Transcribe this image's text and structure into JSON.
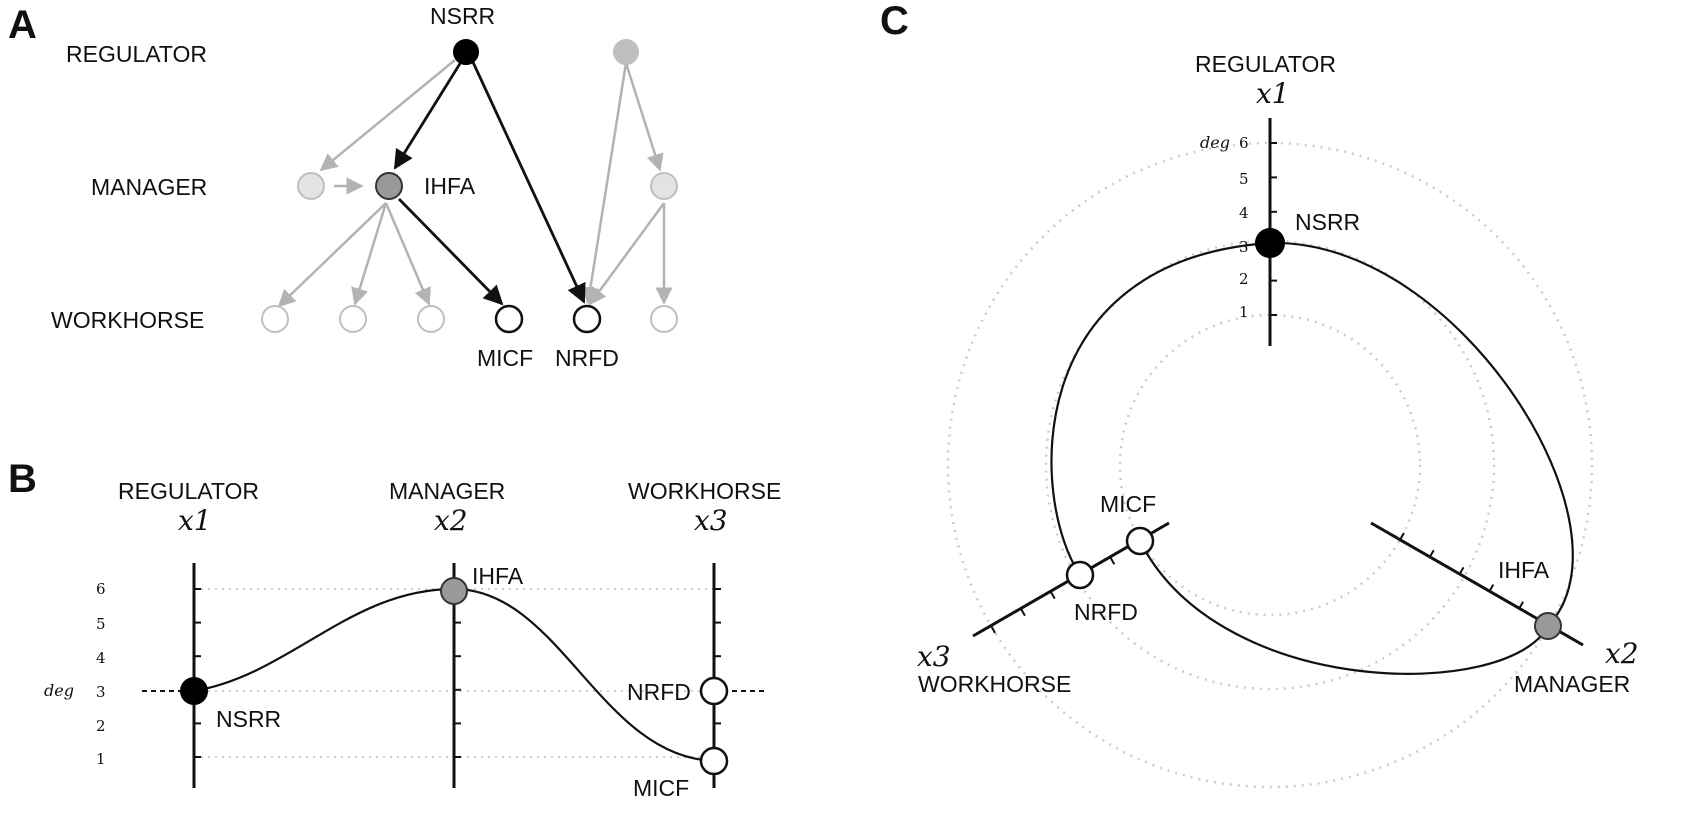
{
  "panels": {
    "a": "A",
    "b": "B",
    "c": "C"
  },
  "levels": {
    "regulator": "REGULATOR",
    "manager": "MANAGER",
    "workhorse": "WORKHORSE"
  },
  "vars": {
    "x1": "x1",
    "x2": "x2",
    "x3": "x3"
  },
  "nodes": {
    "nsrr": "NSRR",
    "ihfa": "IHFA",
    "micf": "MICF",
    "nrfd": "NRFD"
  },
  "deg_label": "deg",
  "ticks": [
    "1",
    "2",
    "3",
    "4",
    "5",
    "6"
  ],
  "degrees": {
    "NSRR": 3,
    "IHFA": 6,
    "NRFD": 3,
    "MICF": 1
  },
  "colors": {
    "regulator": "#000000",
    "manager": "#999999",
    "workhorse": "#ffffff",
    "faded_node": "#bfbfbf",
    "faded_edge": "#b3b3b3",
    "grid": "#cccccc"
  }
}
